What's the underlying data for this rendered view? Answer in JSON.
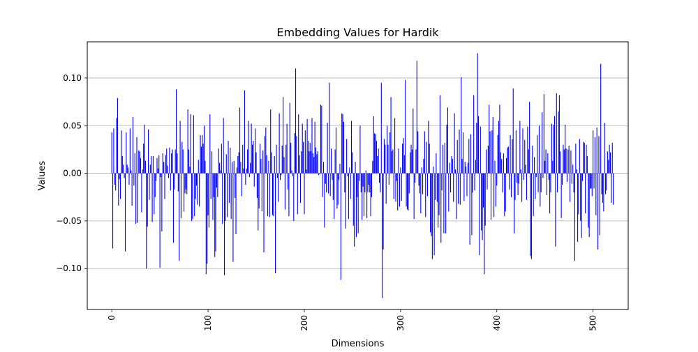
{
  "chart_data": {
    "type": "bar",
    "title": "Embedding Values for Hardik",
    "xlabel": "Dimensions",
    "ylabel": "Values",
    "xlim": [
      -25.5,
      536.5
    ],
    "ylim": [
      -0.143,
      0.138
    ],
    "xticks": [
      0,
      100,
      200,
      300,
      400,
      500
    ],
    "yticks": [
      -0.1,
      -0.05,
      0.0,
      0.05,
      0.1
    ],
    "ytick_labels": [
      "−0.10",
      "−0.05",
      "0.00",
      "0.05",
      "0.10"
    ],
    "grid": "y",
    "x_tick_rotation": 90,
    "bar_color": "#0000ff",
    "series": [
      {
        "x_start": 0,
        "values": [
          0.043,
          -0.079,
          0.047,
          -0.012,
          -0.018,
          0.058,
          0.079,
          -0.034,
          -0.006,
          -0.027,
          0.045,
          0.018,
          0.009,
          -0.005,
          -0.082,
          0.043,
          0.009,
          0.006,
          -0.012,
          0.047,
          0.003,
          -0.034,
          0.059,
          -0.013,
          0.021,
          -0.053,
          0.038,
          -0.052,
          0.024,
          0.023,
          0.016,
          -0.041,
          0.004,
          0.031,
          0.051,
          0.013,
          -0.1,
          -0.056,
          0.046,
          -0.028,
          0.009,
          0.018,
          -0.051,
          0.018,
          -0.043,
          -0.025,
          -0.008,
          0.016,
          0.005,
          0.019,
          -0.099,
          -0.004,
          -0.061,
          0.021,
          0.012,
          -0.027,
          0.019,
          0.026,
          0.008,
          -0.005,
          0.027,
          -0.018,
          0.021,
          0.025,
          -0.073,
          -0.017,
          0.025,
          0.088,
          0.021,
          -0.019,
          -0.092,
          0.055,
          -0.047,
          0.033,
          0.025,
          -0.04,
          -0.021,
          -0.017,
          -0.022,
          0.067,
          0.025,
          0.007,
          0.062,
          -0.05,
          -0.048,
          0.061,
          -0.045,
          -0.027,
          -0.013,
          -0.033,
          0.014,
          -0.035,
          0.04,
          0.028,
          0.04,
          0.031,
          0.05,
          0.013,
          -0.106,
          -0.095,
          -0.044,
          -0.057,
          0.062,
          -0.027,
          0.023,
          -0.049,
          -0.025,
          -0.088,
          -0.082,
          -0.015,
          -0.025,
          0.026,
          0.011,
          0.003,
          0.031,
          -0.053,
          0.058,
          -0.107,
          -0.05,
          0.02,
          -0.046,
          0.034,
          -0.031,
          0.027,
          -0.048,
          0.012,
          -0.093,
          0.013,
          -0.026,
          -0.064,
          0.006,
          0.018,
          0.022,
          0.069,
          0.012,
          -0.024,
          0.03,
          0.005,
          0.087,
          -0.012,
          0.005,
          0.025,
          0.055,
          -0.004,
          0.011,
          0.052,
          0.03,
          0.034,
          -0.014,
          0.047,
          0.022,
          -0.026,
          -0.06,
          -0.037,
          0.031,
          0.015,
          -0.04,
          0.024,
          -0.083,
          0.039,
          0.048,
          0.019,
          -0.045,
          0.013,
          -0.046,
          0.067,
          0.022,
          -0.044,
          -0.045,
          0.018,
          -0.105,
          0.03,
          -0.005,
          -0.03,
          0.063,
          -0.007,
          -0.002,
          0.029,
          0.08,
          0.017,
          -0.038,
          0.03,
          0.052,
          -0.017,
          -0.045,
          0.074,
          0.032,
          0.003,
          -0.003,
          -0.05,
          0.042,
          0.11,
          0.039,
          -0.043,
          0.062,
          0.019,
          -0.031,
          0.023,
          0.052,
          0.033,
          -0.043,
          0.045,
          0.004,
          0.057,
          0.034,
          0.023,
          0.032,
          0.023,
          0.058,
          0.021,
          0.017,
          0.054,
          0.027,
          0.02,
          0.023,
          -0.002,
          -0.001,
          0.072,
          0.071,
          -0.025,
          0.012,
          -0.057,
          -0.011,
          -0.02,
          0.053,
          -0.021,
          0.095,
          -0.024,
          0.026,
          -0.007,
          -0.028,
          -0.048,
          0.025,
          0.048,
          -0.037,
          -0.033,
          -0.007,
          0.01,
          -0.112,
          0.063,
          0.062,
          0.054,
          -0.02,
          -0.058,
          0.036,
          -0.003,
          -0.048,
          0.006,
          -0.027,
          0.055,
          0.022,
          -0.055,
          -0.077,
          0.012,
          -0.067,
          -0.025,
          -0.063,
          -0.008,
          0.05,
          -0.02,
          -0.049,
          -0.014,
          -0.045,
          -0.02,
          0.003,
          -0.047,
          -0.02,
          -0.012,
          -0.02,
          -0.045,
          -0.025,
          0.013,
          0.06,
          0.042,
          0.041,
          0.034,
          0.018,
          0.026,
          -0.01,
          -0.02,
          0.095,
          -0.131,
          -0.08,
          0.036,
          0.03,
          -0.032,
          0.05,
          0.03,
          -0.012,
          0.043,
          0.08,
          0.023,
          0.025,
          -0.027,
          0.058,
          -0.03,
          -0.008,
          -0.039,
          0.026,
          -0.035,
          0.006,
          -0.029,
          0.031,
          0.037,
          0.019,
          0.098,
          -0.035,
          -0.038,
          -0.039,
          -0.021,
          0.022,
          0.03,
          0.025,
          0.068,
          -0.048,
          -0.01,
          0.025,
          0.118,
          0.044,
          -0.013,
          -0.021,
          -0.042,
          0.006,
          -0.022,
          0.015,
          0.044,
          -0.046,
          0.033,
          -0.024,
          0.055,
          0.031,
          -0.062,
          -0.066,
          -0.09,
          0.007,
          -0.086,
          -0.028,
          0.021,
          -0.03,
          -0.057,
          -0.044,
          0.082,
          -0.073,
          -0.018,
          0.03,
          -0.063,
          0.032,
          -0.063,
          0.051,
          0.069,
          -0.04,
          0.011,
          -0.02,
          0.018,
          0.015,
          -0.03,
          0.063,
          0.004,
          -0.048,
          0.035,
          -0.032,
          0.046,
          -0.033,
          0.101,
          0.015,
          0.043,
          -0.029,
          0.012,
          0.007,
          -0.024,
          0.011,
          0.036,
          -0.075,
          0.041,
          -0.065,
          -0.02,
          0.082,
          -0.018,
          0.014,
          0.053,
          0.126,
          0.06,
          -0.086,
          0.049,
          -0.06,
          -0.07,
          -0.036,
          -0.106,
          -0.055,
          0.025,
          -0.017,
          0.029,
          0.072,
          0.044,
          -0.049,
          0.045,
          0.059,
          -0.046,
          0.013,
          -0.035,
          -0.013,
          0.04,
          0.055,
          0.072,
          0.022,
          0.015,
          -0.02,
          0.021,
          -0.045,
          -0.04,
          0.016,
          0.027,
          0.028,
          -0.017,
          0.04,
          -0.025,
          0.036,
          0.089,
          -0.063,
          -0.028,
          0.045,
          -0.01,
          -0.023,
          -0.011,
          0.055,
          0.004,
          -0.03,
          0.047,
          -0.007,
          0.035,
          0.009,
          -0.028,
          0.049,
          0.025,
          0.075,
          -0.087,
          -0.09,
          0.029,
          -0.045,
          0.017,
          -0.027,
          -0.004,
          0.04,
          -0.02,
          0.05,
          -0.035,
          -0.02,
          0.064,
          -0.005,
          0.083,
          0.013,
          0.025,
          -0.023,
          0.021,
          -0.007,
          -0.042,
          -0.02,
          0.052,
          0.013,
          0.051,
          0.06,
          -0.077,
          0.084,
          -0.02,
          0.065,
          0.082,
          0.023,
          -0.047,
          -0.012,
          0.03,
          0.025,
          0.051,
          0.026,
          -0.009,
          0.025,
          0.029,
          -0.03,
          0.024,
          -0.011,
          0.009,
          -0.02,
          -0.092,
          0.031,
          0.004,
          -0.072,
          -0.043,
          0.036,
          -0.05,
          -0.068,
          -0.008,
          0.033,
          0.032,
          -0.042,
          0.03,
          0.018,
          -0.057,
          -0.067,
          -0.016,
          -0.016,
          -0.024,
          0.045,
          -0.016,
          0.038,
          -0.044,
          0.048,
          -0.08,
          0.039,
          -0.065,
          0.115,
          -0.022,
          -0.031,
          -0.04,
          0.053,
          -0.022,
          -0.018,
          0.023,
          0.014,
          0.03,
          0.022,
          -0.031,
          0.032,
          -0.033
        ]
      }
    ]
  }
}
